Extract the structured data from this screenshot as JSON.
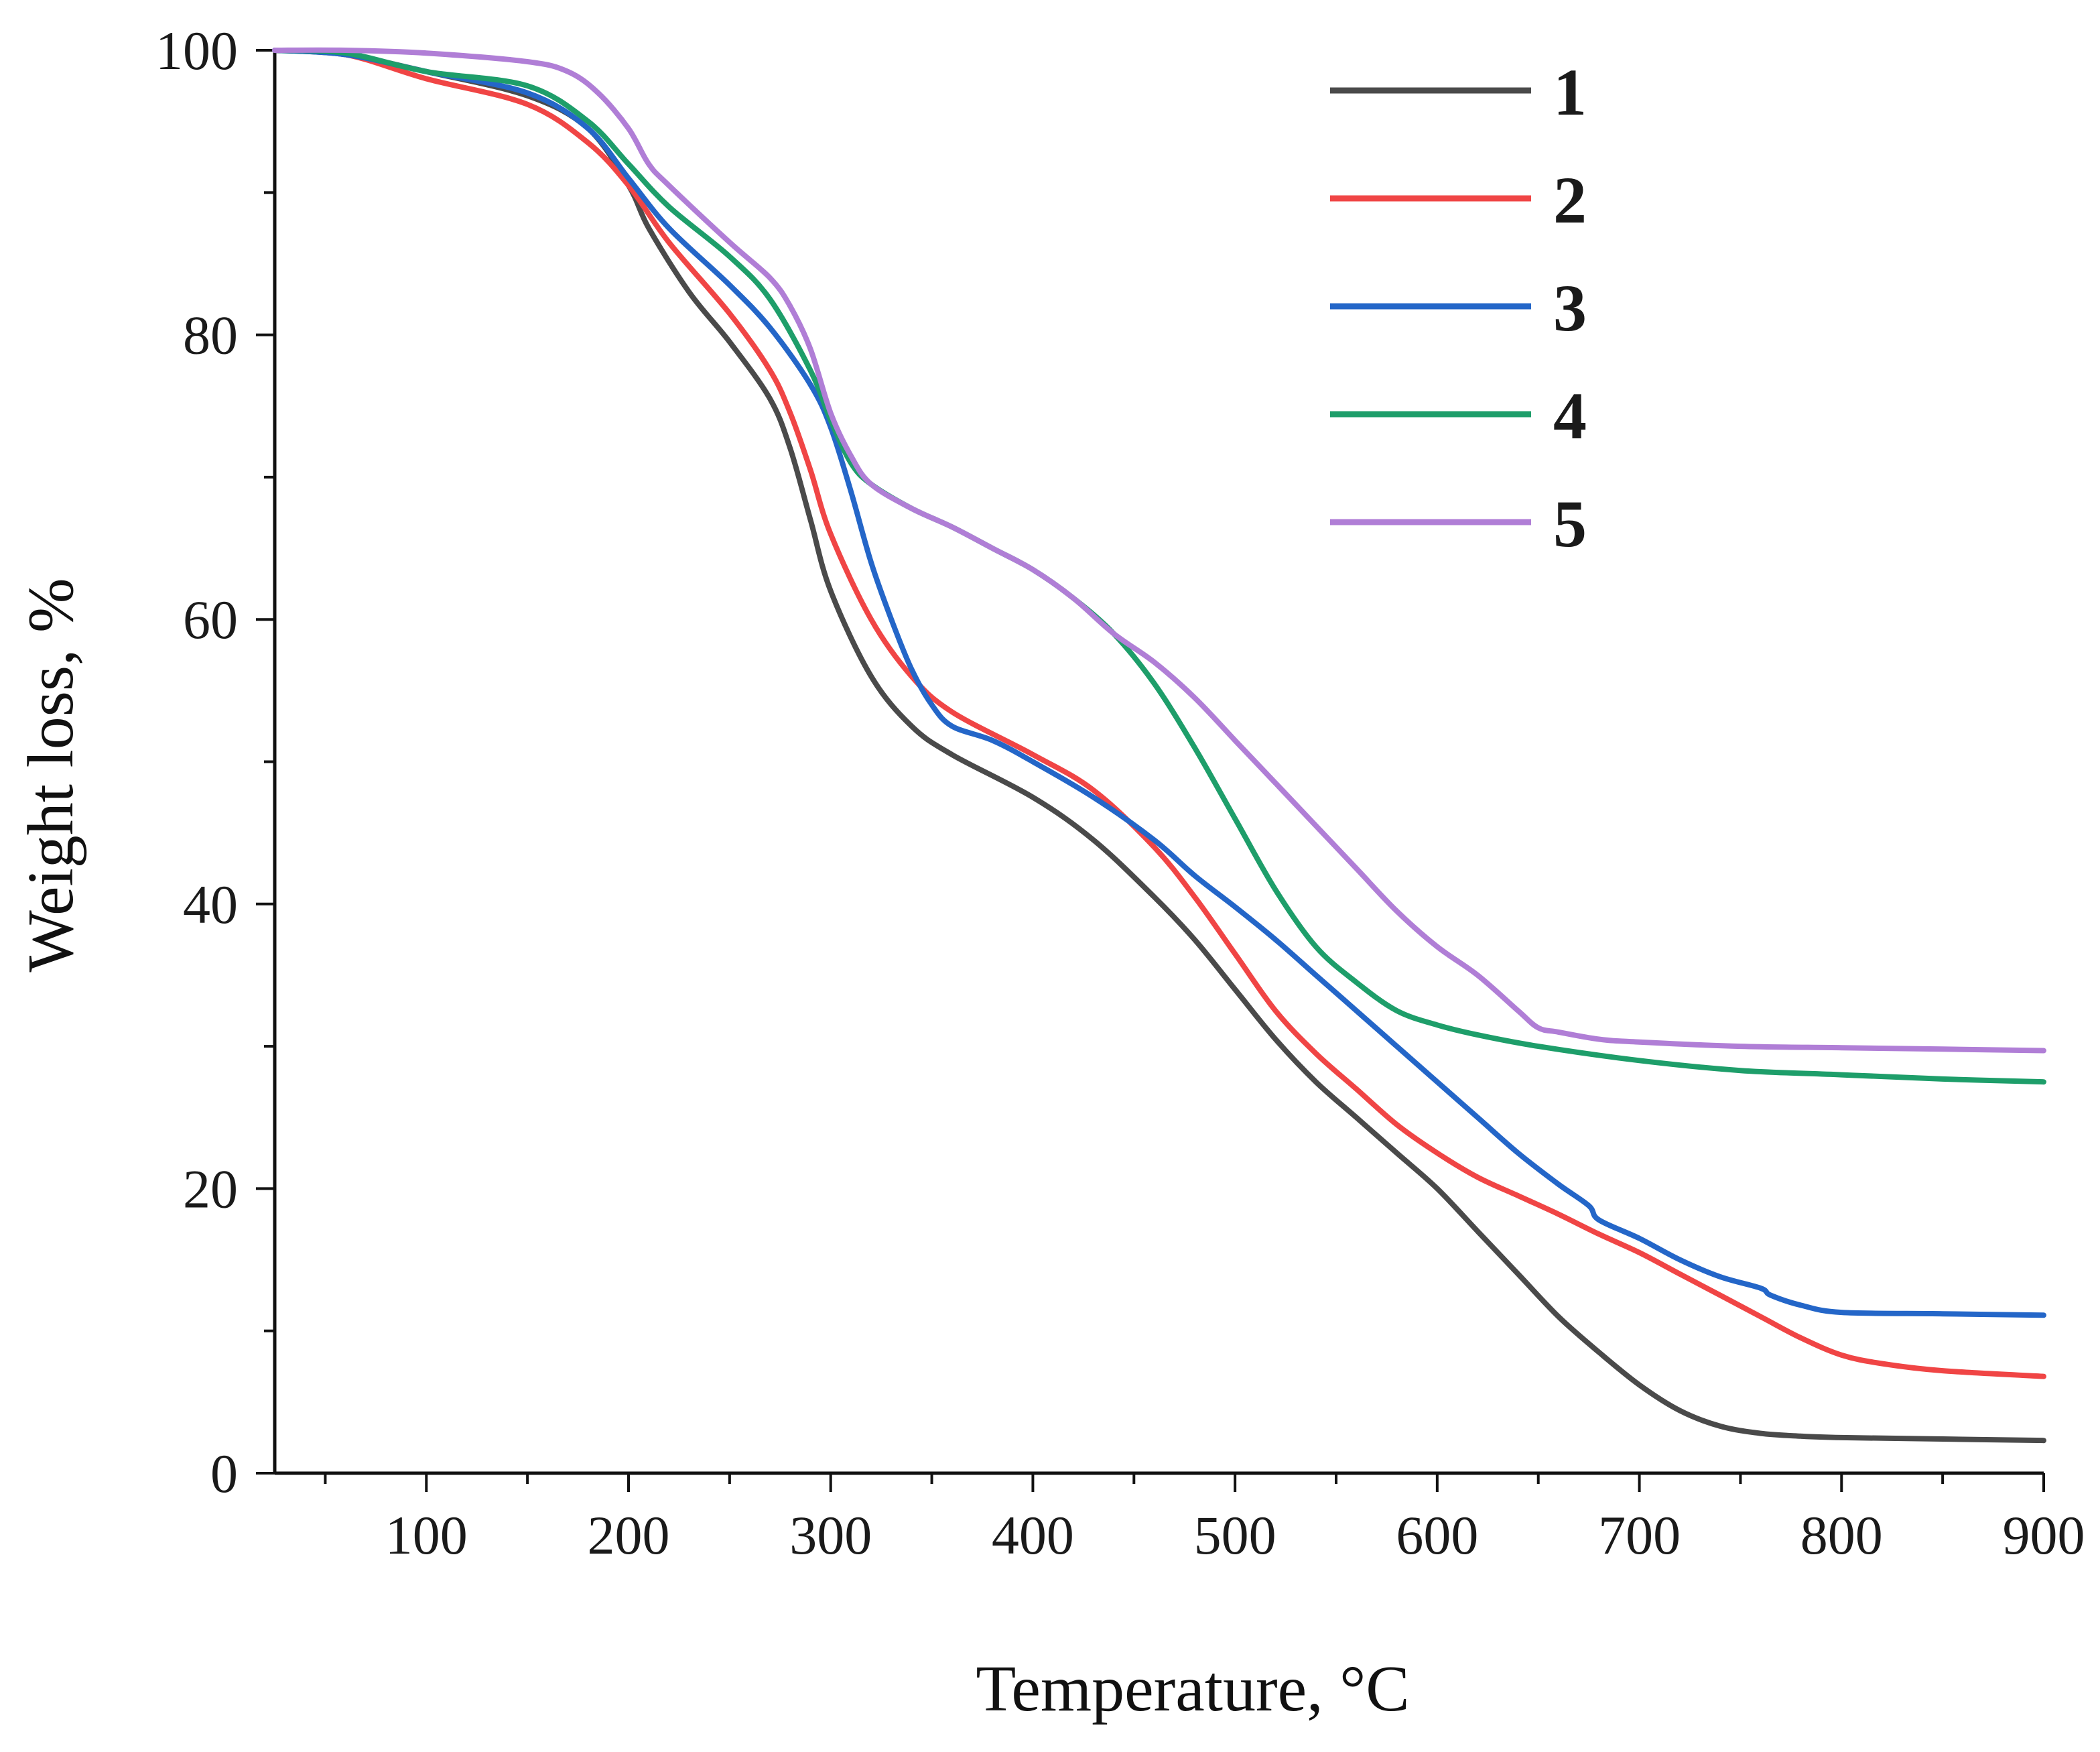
{
  "chart_data": {
    "type": "line",
    "title": "",
    "xlabel": "Temperature, °C",
    "ylabel": "Weight loss, %",
    "xlim": [
      25,
      900
    ],
    "ylim": [
      0,
      100
    ],
    "x_ticks": [
      100,
      200,
      300,
      400,
      500,
      600,
      700,
      800,
      900
    ],
    "x_minor_ticks": [
      50,
      150,
      250,
      350,
      450,
      550,
      650,
      750,
      850
    ],
    "y_ticks": [
      0,
      20,
      40,
      60,
      80,
      100
    ],
    "y_minor_ticks": [
      10,
      30,
      50,
      70,
      90
    ],
    "grid": false,
    "legend_position": "top-right",
    "series": [
      {
        "name": "1",
        "color": "#4a4a4a",
        "x": [
          25,
          60,
          100,
          150,
          180,
          200,
          210,
          230,
          250,
          270,
          280,
          290,
          300,
          320,
          340,
          360,
          400,
          430,
          460,
          480,
          500,
          520,
          540,
          560,
          580,
          600,
          620,
          640,
          660,
          680,
          700,
          720,
          740,
          760,
          780,
          800,
          850,
          900
        ],
        "y": [
          100,
          99.7,
          98.5,
          96.8,
          94.5,
          90.5,
          87.5,
          83,
          79.5,
          75.5,
          72,
          67,
          62,
          56,
          52.5,
          50.5,
          47.5,
          44.5,
          40.5,
          37.5,
          34,
          30.5,
          27.5,
          25,
          22.5,
          20,
          17,
          14,
          11,
          8.5,
          6.2,
          4.4,
          3.3,
          2.8,
          2.6,
          2.5,
          2.4,
          2.3
        ]
      },
      {
        "name": "2",
        "color": "#f04545",
        "x": [
          25,
          60,
          100,
          150,
          180,
          200,
          220,
          250,
          270,
          280,
          290,
          300,
          320,
          340,
          360,
          400,
          430,
          460,
          480,
          500,
          520,
          540,
          560,
          580,
          600,
          620,
          640,
          660,
          680,
          700,
          720,
          740,
          760,
          780,
          800,
          820,
          850,
          900
        ],
        "y": [
          100,
          99.7,
          98,
          96.2,
          93.5,
          90.5,
          86.5,
          81.5,
          77.5,
          74.5,
          70.5,
          66,
          60,
          56,
          53.5,
          50.5,
          48,
          44,
          40.5,
          36.5,
          32.5,
          29.5,
          27,
          24.5,
          22.5,
          20.8,
          19.5,
          18.2,
          16.8,
          15.5,
          14,
          12.5,
          11,
          9.5,
          8.3,
          7.7,
          7.2,
          6.8
        ]
      },
      {
        "name": "3",
        "color": "#2466c8",
        "x": [
          25,
          60,
          100,
          150,
          180,
          200,
          220,
          250,
          270,
          290,
          300,
          310,
          320,
          330,
          340,
          350,
          360,
          380,
          400,
          430,
          460,
          480,
          500,
          520,
          540,
          560,
          580,
          600,
          620,
          640,
          660,
          675,
          680,
          700,
          720,
          740,
          760,
          765,
          780,
          800,
          850,
          900
        ],
        "y": [
          100,
          99.7,
          98.5,
          97,
          94.5,
          91,
          87.5,
          83.5,
          80.5,
          76.5,
          73.5,
          69,
          64,
          60,
          56.5,
          54,
          52.5,
          51.5,
          50,
          47.5,
          44.5,
          42,
          39.8,
          37.5,
          35,
          32.5,
          30,
          27.5,
          25,
          22.5,
          20.3,
          18.8,
          17.8,
          16.5,
          15,
          13.8,
          13,
          12.5,
          11.8,
          11.3,
          11.2,
          11.1
        ]
      },
      {
        "name": "4",
        "color": "#1e9e6a",
        "x": [
          25,
          60,
          100,
          150,
          180,
          200,
          220,
          250,
          270,
          290,
          300,
          310,
          320,
          340,
          360,
          380,
          400,
          420,
          440,
          460,
          480,
          500,
          520,
          540,
          560,
          580,
          600,
          620,
          650,
          700,
          750,
          800,
          850,
          900
        ],
        "y": [
          100,
          99.8,
          98.5,
          97.5,
          95,
          92,
          89,
          85.5,
          82.5,
          77.5,
          74,
          71,
          69.5,
          67.8,
          66.5,
          65,
          63.5,
          61.5,
          59,
          55.5,
          51,
          46,
          41,
          37,
          34.5,
          32.5,
          31.5,
          30.8,
          30,
          29,
          28.3,
          28,
          27.7,
          27.5
        ]
      },
      {
        "name": "5",
        "color": "#b07ed6",
        "x": [
          25,
          60,
          100,
          150,
          170,
          185,
          200,
          210,
          220,
          250,
          270,
          280,
          290,
          300,
          310,
          320,
          340,
          360,
          380,
          400,
          420,
          440,
          460,
          480,
          500,
          520,
          540,
          560,
          580,
          600,
          620,
          640,
          650,
          660,
          680,
          700,
          750,
          800,
          850,
          900
        ],
        "y": [
          100,
          100,
          99.8,
          99.2,
          98.5,
          97,
          94.5,
          92,
          90.5,
          86.5,
          84,
          82,
          79,
          74.5,
          71.5,
          69.5,
          67.8,
          66.5,
          65,
          63.5,
          61.5,
          59,
          57,
          54.5,
          51.5,
          48.5,
          45.5,
          42.5,
          39.5,
          37,
          35,
          32.5,
          31.3,
          31,
          30.5,
          30.3,
          30,
          29.9,
          29.8,
          29.7
        ]
      }
    ]
  }
}
